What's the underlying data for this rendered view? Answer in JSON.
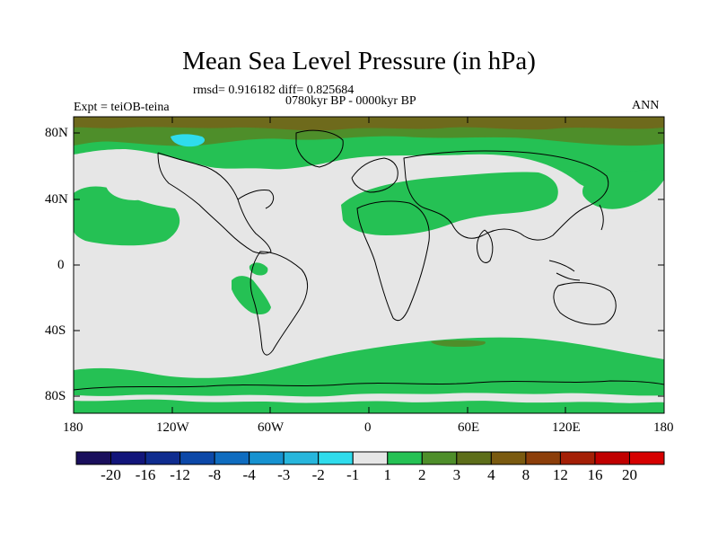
{
  "title": "Mean Sea Level Pressure (in hPa)",
  "stats": "rmsd= 0.916182 diff= 0.825684",
  "period": "0780kyr BP - 0000kyr BP",
  "experiment": "Expt = teiOB-teina",
  "season": "ANN",
  "axes": {
    "lat_labels": [
      "80N",
      "40N",
      "0",
      "40S",
      "80S"
    ],
    "lon_labels": [
      "180",
      "120W",
      "60W",
      "0",
      "60E",
      "120E",
      "180"
    ]
  },
  "colorbar": {
    "labels": [
      "-20",
      "-16",
      "-12",
      "-8",
      "-4",
      "-3",
      "-2",
      "-1",
      "1",
      "2",
      "3",
      "4",
      "8",
      "12",
      "16",
      "20"
    ],
    "colors": [
      "#1a0f5c",
      "#12157a",
      "#0f2c8f",
      "#0c48a8",
      "#0f6cbf",
      "#1692d0",
      "#27b6dc",
      "#2fdcec",
      "#e6e6e6",
      "#25c154",
      "#4e8e2a",
      "#5d6e1a",
      "#7a5a10",
      "#8c3e0a",
      "#a41f06",
      "#c00000",
      "#d60000"
    ]
  },
  "colors": {
    "neutral": "#e6e6e6",
    "green": "#25c154",
    "dark_green": "#4e8e2a",
    "olive": "#6e6a1c",
    "cyan": "#2fdcec",
    "coast": "#000000"
  }
}
